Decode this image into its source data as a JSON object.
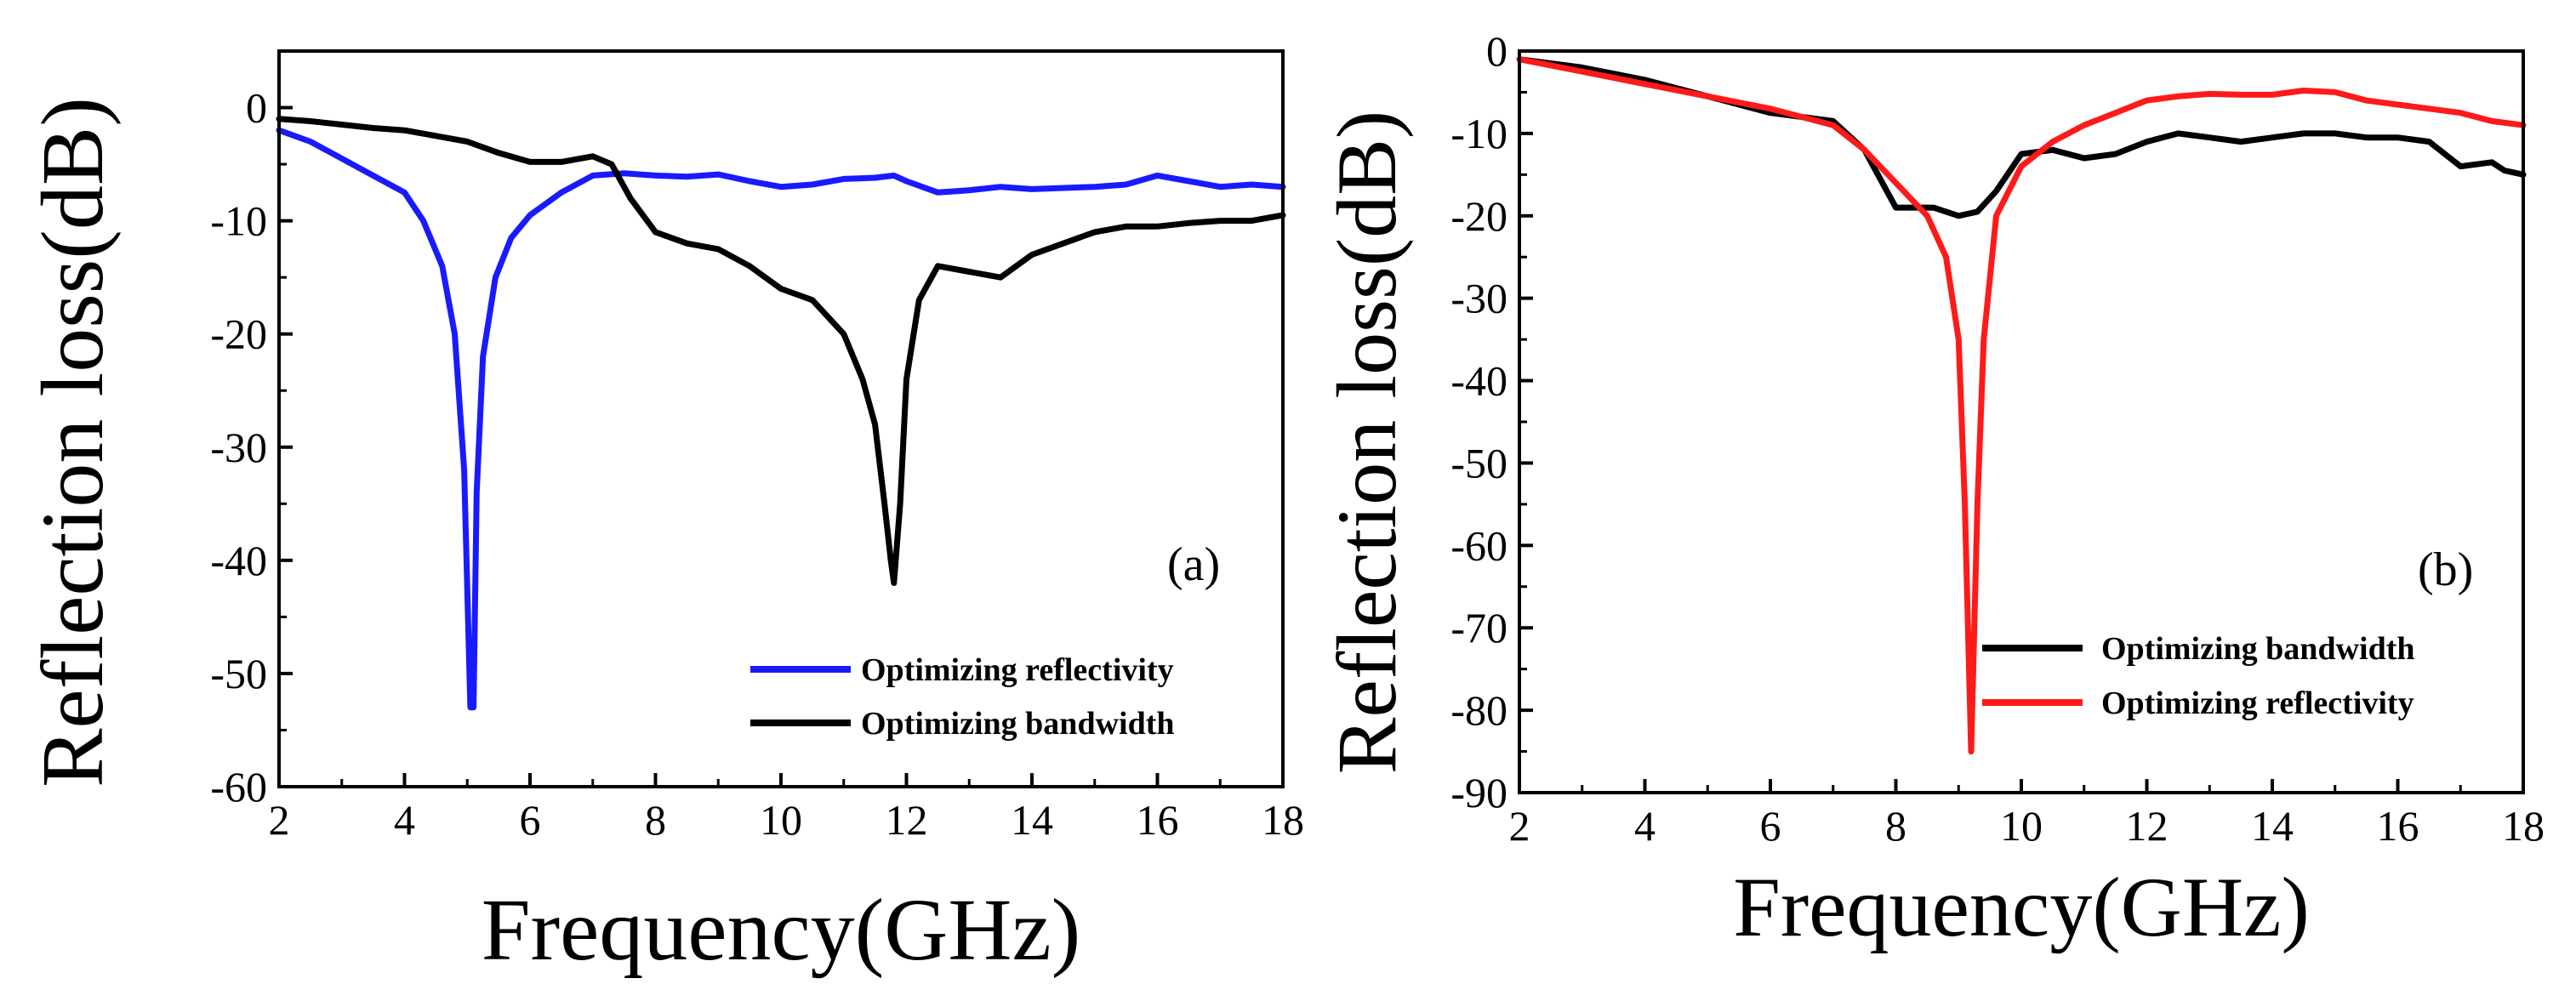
{
  "chart_data": [
    {
      "type": "line",
      "panel_label": "(a)",
      "xlabel": "Frequency(GHz)",
      "ylabel": "Reflection loss(dB)",
      "xlim": [
        2,
        18
      ],
      "ylim": [
        -60,
        5
      ],
      "xticks": [
        2,
        4,
        6,
        8,
        10,
        12,
        14,
        16,
        18
      ],
      "yticks": [
        0,
        -10,
        -20,
        -30,
        -40,
        -50,
        -60
      ],
      "legend_position": "bottom-right",
      "series": [
        {
          "name": "Optimizing reflectivity",
          "color": "#1a1aff",
          "x": [
            2,
            2.5,
            3,
            3.5,
            4,
            4.3,
            4.6,
            4.8,
            4.95,
            5.05,
            5.1,
            5.15,
            5.25,
            5.45,
            5.7,
            6,
            6.5,
            7,
            7.5,
            8,
            8.5,
            9,
            9.5,
            10,
            10.5,
            11,
            11.5,
            11.8,
            12,
            12.5,
            13,
            13.5,
            14,
            14.5,
            15,
            15.5,
            16,
            16.5,
            17,
            17.5,
            18
          ],
          "y": [
            -2,
            -3,
            -4.5,
            -6,
            -7.5,
            -10,
            -14,
            -20,
            -32,
            -53,
            -53,
            -34,
            -22,
            -15,
            -11.5,
            -9.5,
            -7.5,
            -6,
            -5.8,
            -6,
            -6.1,
            -5.9,
            -6.5,
            -7,
            -6.8,
            -6.3,
            -6.2,
            -6,
            -6.5,
            -7.5,
            -7.3,
            -7,
            -7.2,
            -7.1,
            -7,
            -6.8,
            -6,
            -6.5,
            -7,
            -6.8,
            -7
          ]
        },
        {
          "name": "Optimizing bandwidth",
          "color": "#000000",
          "x": [
            2,
            2.5,
            3,
            3.5,
            4,
            4.5,
            5,
            5.5,
            6,
            6.5,
            7,
            7.3,
            7.6,
            8,
            8.5,
            9,
            9.5,
            10,
            10.5,
            11,
            11.3,
            11.5,
            11.65,
            11.75,
            11.8,
            11.9,
            12,
            12.2,
            12.5,
            13,
            13.5,
            14,
            14.5,
            15,
            15.5,
            16,
            16.5,
            17,
            17.5,
            18
          ],
          "y": [
            -1,
            -1.2,
            -1.5,
            -1.8,
            -2,
            -2.5,
            -3,
            -4,
            -4.8,
            -4.8,
            -4.3,
            -5,
            -8,
            -11,
            -12,
            -12.5,
            -14,
            -16,
            -17,
            -20,
            -24,
            -28,
            -35,
            -40,
            -42,
            -35,
            -24,
            -17,
            -14,
            -14.5,
            -15,
            -13,
            -12,
            -11,
            -10.5,
            -10.5,
            -10.2,
            -10,
            -10,
            -9.5
          ]
        }
      ]
    },
    {
      "type": "line",
      "panel_label": "(b)",
      "xlabel": "Frequency(GHz)",
      "ylabel": "Reflection loss(dB)",
      "xlim": [
        2,
        18
      ],
      "ylim": [
        -90,
        0
      ],
      "xticks": [
        2,
        4,
        6,
        8,
        10,
        12,
        14,
        16,
        18
      ],
      "yticks": [
        0,
        -10,
        -20,
        -30,
        -40,
        -50,
        -60,
        -70,
        -80,
        -90
      ],
      "legend_position": "bottom-right",
      "series": [
        {
          "name": "Optimizing bandwidth",
          "color": "#000000",
          "x": [
            2,
            3,
            4,
            5,
            6,
            6.5,
            7,
            7.5,
            8,
            8.3,
            8.6,
            9,
            9.3,
            9.6,
            10,
            10.5,
            11,
            11.5,
            12,
            12.5,
            13,
            13.5,
            14,
            14.5,
            15,
            15.5,
            16,
            16.5,
            17,
            17.5,
            17.7,
            18
          ],
          "y": [
            -1,
            -2,
            -3.5,
            -5.5,
            -7.5,
            -8,
            -8.5,
            -12,
            -19,
            -19,
            -19,
            -20,
            -19.5,
            -17,
            -12.5,
            -12,
            -13,
            -12.5,
            -11,
            -10,
            -10.5,
            -11,
            -10.5,
            -10,
            -10,
            -10.5,
            -10.5,
            -11,
            -14,
            -13.5,
            -14.5,
            -15
          ]
        },
        {
          "name": "Optimizing reflectivity",
          "color": "#ff1a1a",
          "x": [
            2,
            3,
            4,
            5,
            6,
            7,
            7.5,
            8,
            8.5,
            8.8,
            9,
            9.1,
            9.2,
            9.3,
            9.4,
            9.6,
            10,
            10.5,
            11,
            11.5,
            12,
            12.5,
            13,
            13.5,
            14,
            14.5,
            15,
            15.5,
            16,
            16.5,
            17,
            17.5,
            18
          ],
          "y": [
            -1,
            -2.5,
            -4,
            -5.5,
            -7,
            -9,
            -12,
            -16,
            -20,
            -25,
            -35,
            -55,
            -85,
            -55,
            -35,
            -20,
            -14,
            -11,
            -9,
            -7.5,
            -6,
            -5.5,
            -5.2,
            -5.3,
            -5.3,
            -4.8,
            -5,
            -6,
            -6.5,
            -7,
            -7.5,
            -8.5,
            -9
          ]
        }
      ]
    }
  ]
}
